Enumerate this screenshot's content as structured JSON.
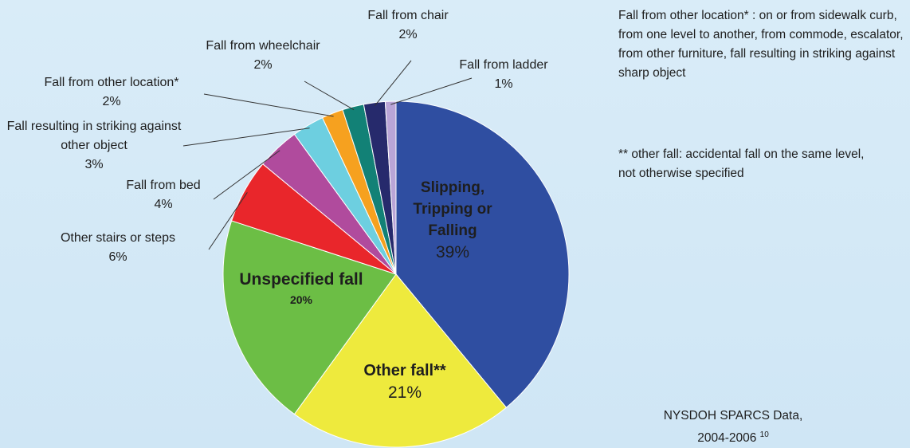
{
  "chart_data": {
    "type": "pie",
    "categories": [
      "Slipping, Tripping or Falling",
      "Other fall**",
      "Unspecified fall",
      "Other stairs or steps",
      "Fall from bed",
      "Fall resulting in striking against other object",
      "Fall from other location*",
      "Fall from wheelchair",
      "Fall from chair",
      "Fall from ladder"
    ],
    "values": [
      39,
      21,
      20,
      6,
      4,
      3,
      2,
      2,
      2,
      1
    ],
    "value_labels": [
      "39%",
      "21%",
      "20%",
      "6%",
      "4%",
      "3%",
      "2%",
      "2%",
      "2%",
      "1%"
    ],
    "colors": [
      "#2f4ea1",
      "#eeea3d",
      "#6cbe45",
      "#e9262b",
      "#b04b9d",
      "#6dcfe0",
      "#f6a11f",
      "#128176",
      "#262a6c",
      "#b9a5d7"
    ],
    "notes": [
      "Fall from other location* : on or from sidewalk curb, from one level to another, from commode, escalator, from other furniture, fall resulting in striking against sharp object",
      "** other fall: accidental fall on the same level, not otherwise specified"
    ],
    "source": "NYSDOH SPARCS Data, 2004-2006",
    "source_ref": "10"
  }
}
